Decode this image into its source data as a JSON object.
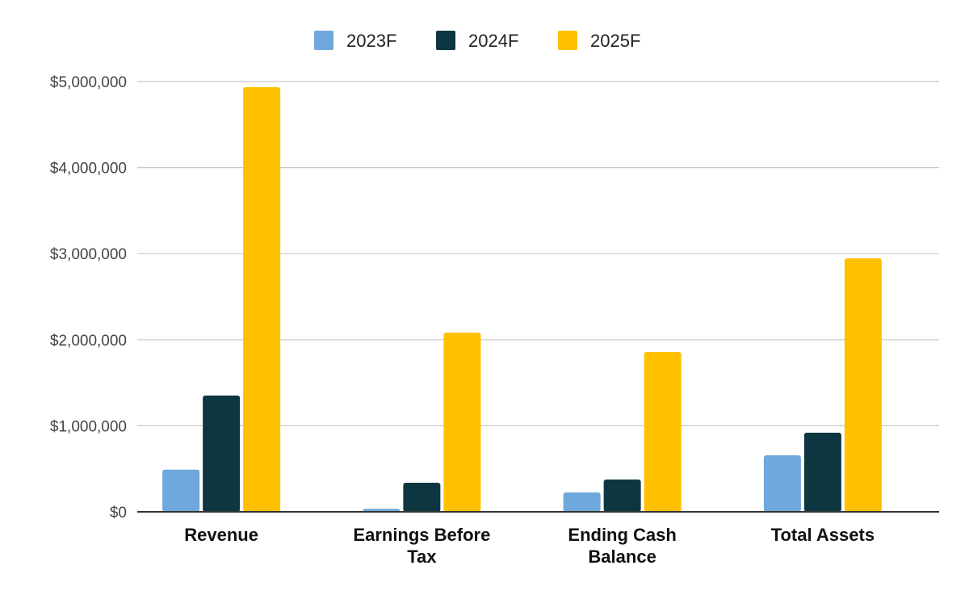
{
  "chart_data": {
    "type": "bar",
    "title": "",
    "xlabel": "",
    "ylabel": "",
    "categories": [
      [
        "Revenue"
      ],
      [
        "Earnings Before",
        "Tax"
      ],
      [
        "Ending Cash",
        "Balance"
      ],
      [
        "Total Assets"
      ]
    ],
    "series": [
      {
        "name": "2023F",
        "color": "#6fa8dc",
        "values": [
          490000,
          35000,
          225000,
          657000
        ]
      },
      {
        "name": "2024F",
        "color": "#0e3640",
        "values": [
          1351000,
          338000,
          375000,
          919000
        ]
      },
      {
        "name": "2025F",
        "color": "#ffc000",
        "values": [
          4934000,
          2083000,
          1857000,
          2946000
        ]
      }
    ],
    "ylim": [
      0,
      5000000
    ],
    "yticks": [
      0,
      1000000,
      2000000,
      3000000,
      4000000,
      5000000
    ],
    "ytick_labels": [
      "$0",
      "$1,000,000",
      "$2,000,000",
      "$3,000,000",
      "$4,000,000",
      "$5,000,000"
    ],
    "grid": true,
    "legend_position": "top-center"
  }
}
